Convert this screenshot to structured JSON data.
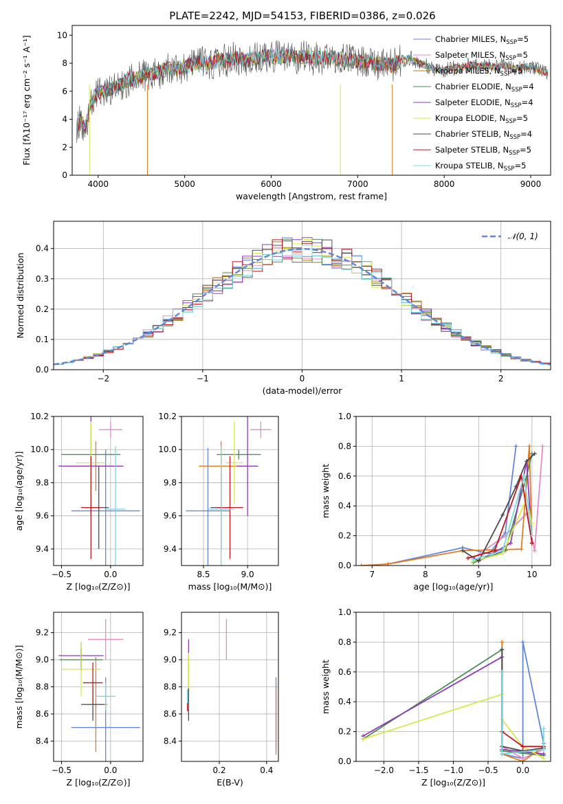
{
  "figure": {
    "title": "PLATE=2242, MJD=54153, FIBERID=0386, z=0.026"
  },
  "chart_data": [
    {
      "id": "spectrum",
      "type": "line",
      "title": "PLATE=2242, MJD=54153, FIBERID=0386, z=0.026",
      "xlabel": "wavelength [Angstrom, rest frame]",
      "ylabel": "Flux [fλ10⁻¹⁷ erg cm⁻² s⁻¹ A⁻¹]",
      "xlim": [
        3700,
        9230
      ],
      "ylim": [
        0,
        10.7
      ],
      "xticks": [
        4000,
        5000,
        6000,
        7000,
        8000,
        9000
      ],
      "yticks": [
        0,
        2,
        4,
        6,
        8,
        10
      ],
      "legend_position": "top-right",
      "data_x": [
        3750,
        3800,
        3850,
        3900,
        3950,
        4000,
        4100,
        4200,
        4300,
        4400,
        4500,
        4600,
        4700,
        4800,
        4900,
        5000,
        5100,
        5200,
        5300,
        5400,
        5500,
        5600,
        5700,
        5800,
        5900,
        6000,
        6100,
        6200,
        6300,
        6400,
        6500,
        6600,
        6700,
        6800,
        6900,
        7000,
        7100,
        7200,
        7300,
        7400,
        7500,
        7600,
        7700,
        7800,
        7900,
        8000,
        8100,
        8200,
        8300,
        8400,
        8500,
        8600,
        8700,
        8800,
        8900,
        9000,
        9100,
        9200
      ],
      "data_y": [
        3.5,
        4.0,
        3.2,
        4.8,
        5.6,
        5.9,
        6.1,
        6.3,
        6.6,
        6.9,
        7.0,
        7.3,
        7.3,
        7.6,
        7.6,
        7.8,
        7.9,
        8.1,
        8.0,
        8.2,
        8.2,
        8.4,
        8.2,
        8.4,
        8.5,
        8.5,
        8.4,
        8.6,
        8.4,
        8.5,
        8.3,
        8.4,
        8.4,
        8.3,
        8.2,
        8.1,
        8.2,
        8.0,
        7.9,
        7.8,
        8.2,
        8.4,
        8.0,
        7.8,
        7.6,
        7.5,
        7.7,
        7.6,
        7.9,
        7.8,
        7.8,
        7.7,
        7.9,
        7.6,
        7.7,
        7.8,
        7.5,
        7.3
      ],
      "series": [
        {
          "name": "Chabrier MILES, N",
          "sub": "SSP",
          "suffix": "=5",
          "color": "#5f87d6"
        },
        {
          "name": "Salpeter MILES, N",
          "sub": "SSP",
          "suffix": "=5",
          "color": "#e58ac6"
        },
        {
          "name": "Kroupa MILES, N",
          "sub": "SSP",
          "suffix": "=5",
          "color": "#a77f00"
        },
        {
          "name": "Chabrier ELODIE, N",
          "sub": "SSP",
          "suffix": "=4",
          "color": "#4e8a55"
        },
        {
          "name": "Salpeter ELODIE, N",
          "sub": "SSP",
          "suffix": "=4",
          "color": "#8e3bb8"
        },
        {
          "name": "Kroupa ELODIE, N",
          "sub": "SSP",
          "suffix": "=5",
          "color": "#d8e84a"
        },
        {
          "name": "Chabrier STELIB, N",
          "sub": "SSP",
          "suffix": "=4",
          "color": "#4a4a4a"
        },
        {
          "name": "Salpeter STELIB, N",
          "sub": "SSP",
          "suffix": "=5",
          "color": "#c0151b"
        },
        {
          "name": "Kroupa STELIB, N",
          "sub": "SSP",
          "suffix": "=5",
          "color": "#7ad8e0"
        }
      ]
    },
    {
      "id": "residuals",
      "type": "histogram",
      "xlabel": "(data-model)/error",
      "ylabel": "Normed distribution",
      "xlim": [
        -2.5,
        2.5
      ],
      "ylim": [
        0,
        0.49
      ],
      "xticks": [
        -2,
        -1,
        0,
        1,
        2
      ],
      "yticks": [
        0.0,
        0.1,
        0.2,
        0.3,
        0.4
      ],
      "grid": true,
      "legend_position": "top-right",
      "legend_label": "𝒩(0, 1)",
      "gaussian_color": "#5f87d6",
      "bin_width": 0.1
    },
    {
      "id": "age-vs-z",
      "type": "errorbar",
      "xlabel": "Z [log₁₀(Z/Z⊙)]",
      "ylabel": "age  [log₁₀(age/yr)]",
      "xlim": [
        -0.58,
        0.33
      ],
      "ylim": [
        9.3,
        10.2
      ],
      "xticks": [
        -0.5,
        0.0
      ],
      "yticks": [
        9.4,
        9.6,
        9.8,
        10.0,
        10.2
      ],
      "grid": true,
      "points": [
        {
          "x": -0.05,
          "y": 9.63,
          "xerr": 0.35,
          "yerr": 0.37,
          "color": "#5f87d6"
        },
        {
          "x": 0.0,
          "y": 10.12,
          "xerr": 0.12,
          "yerr": 0.05,
          "color": "#e58ac6"
        },
        {
          "x": -0.15,
          "y": 9.9,
          "xerr": 0.12,
          "yerr": 0.15,
          "color": "#e07b1f"
        },
        {
          "x": -0.2,
          "y": 9.97,
          "xerr": 0.3,
          "yerr": 0.02,
          "color": "#4e8a55"
        },
        {
          "x": -0.2,
          "y": 9.9,
          "xerr": 0.33,
          "yerr": 0.3,
          "color": "#8e3bb8"
        },
        {
          "x": -0.2,
          "y": 9.92,
          "xerr": 0.15,
          "yerr": 0.25,
          "color": "#d8e84a"
        },
        {
          "x": -0.12,
          "y": 9.65,
          "xerr": 0.1,
          "yerr": 0.25,
          "color": "#4a4a4a"
        },
        {
          "x": -0.2,
          "y": 9.65,
          "xerr": 0.1,
          "yerr": 0.31,
          "color": "#c0151b"
        },
        {
          "x": 0.05,
          "y": 9.64,
          "xerr": 0.1,
          "yerr": 0.38,
          "color": "#7ad8e0"
        }
      ]
    },
    {
      "id": "age-vs-mass",
      "type": "errorbar",
      "xlabel": "mass [log₁₀(M/M⊙)]",
      "xlim": [
        8.25,
        9.35
      ],
      "ylim": [
        9.3,
        10.2
      ],
      "xticks": [
        8.5,
        9.0
      ],
      "yticks": [
        9.4,
        9.6,
        9.8,
        10.0,
        10.2
      ],
      "grid": true,
      "points": [
        {
          "x": 8.55,
          "y": 9.63,
          "xerr": 0.25,
          "yerr": 0.38,
          "color": "#5f87d6"
        },
        {
          "x": 9.15,
          "y": 10.12,
          "xerr": 0.12,
          "yerr": 0.05,
          "color": "#e58ac6"
        },
        {
          "x": 8.7,
          "y": 9.9,
          "xerr": 0.25,
          "yerr": 0.15,
          "color": "#e07b1f"
        },
        {
          "x": 8.9,
          "y": 9.97,
          "xerr": 0.25,
          "yerr": 0.03,
          "color": "#4e8a55"
        },
        {
          "x": 9.0,
          "y": 9.9,
          "xerr": 0.12,
          "yerr": 0.3,
          "color": "#8e3bb8"
        },
        {
          "x": 8.85,
          "y": 9.92,
          "xerr": 0.1,
          "yerr": 0.25,
          "color": "#d8e84a"
        },
        {
          "x": 8.7,
          "y": 9.65,
          "xerr": 0.12,
          "yerr": 0.25,
          "color": "#4a4a4a"
        },
        {
          "x": 8.8,
          "y": 9.65,
          "xerr": 0.15,
          "yerr": 0.31,
          "color": "#c0151b"
        },
        {
          "x": 8.7,
          "y": 9.64,
          "xerr": 0.15,
          "yerr": 0.38,
          "color": "#7ad8e0"
        }
      ]
    },
    {
      "id": "weight-vs-age",
      "type": "line",
      "xlabel": "age  [log₁₀(age/yr)]",
      "ylabel": "mass weight",
      "xlim": [
        6.7,
        10.35
      ],
      "ylim": [
        0,
        1.0
      ],
      "xticks": [
        7,
        8,
        9,
        10
      ],
      "yticks": [
        0.0,
        0.2,
        0.4,
        0.6,
        0.8,
        1.0
      ],
      "grid": true,
      "series": [
        {
          "color": "#5f87d6",
          "x": [
            7.3,
            8.7,
            9.2,
            9.5,
            9.7
          ],
          "y": [
            0.01,
            0.12,
            0.08,
            0.22,
            0.8
          ]
        },
        {
          "color": "#e58ac6",
          "x": [
            8.9,
            9.5,
            9.9,
            10.05,
            10.2
          ],
          "y": [
            0.05,
            0.2,
            0.35,
            0.1,
            0.8
          ]
        },
        {
          "color": "#e07b1f",
          "x": [
            6.8,
            7.3,
            8.7,
            9.8,
            9.95,
            10.0
          ],
          "y": [
            0.0,
            0.01,
            0.1,
            0.11,
            0.8,
            0.15
          ]
        },
        {
          "color": "#4e8a55",
          "x": [
            8.9,
            9.5,
            9.9,
            10.0
          ],
          "y": [
            0.02,
            0.1,
            0.6,
            0.75
          ]
        },
        {
          "color": "#8e3bb8",
          "x": [
            9.0,
            9.6,
            9.9,
            10.0
          ],
          "y": [
            0.03,
            0.15,
            0.7,
            0.15
          ]
        },
        {
          "color": "#d8e84a",
          "x": [
            8.9,
            9.45,
            9.9,
            10.0
          ],
          "y": [
            0.03,
            0.08,
            0.45,
            0.28
          ]
        },
        {
          "color": "#4a4a4a",
          "x": [
            8.7,
            9.0,
            9.45,
            9.7,
            9.9,
            10.05
          ],
          "y": [
            0.1,
            0.03,
            0.34,
            0.53,
            0.7,
            0.75
          ]
        },
        {
          "color": "#c0151b",
          "x": [
            8.8,
            9.3,
            9.8,
            10.0
          ],
          "y": [
            0.05,
            0.1,
            0.6,
            0.15
          ]
        },
        {
          "color": "#7ad8e0",
          "x": [
            8.9,
            9.45,
            9.85,
            10.0
          ],
          "y": [
            0.04,
            0.1,
            0.6,
            0.2
          ]
        }
      ]
    },
    {
      "id": "mass-vs-z",
      "type": "errorbar",
      "xlabel": "Z [log₁₀(Z/Z⊙)]",
      "ylabel": "mass [log₁₀(M/M⊙)]",
      "xlim": [
        -0.58,
        0.33
      ],
      "ylim": [
        8.25,
        9.35
      ],
      "xticks": [
        -0.5,
        0.0
      ],
      "yticks": [
        8.4,
        8.6,
        8.8,
        9.0,
        9.2
      ],
      "grid": true,
      "points": [
        {
          "x": -0.05,
          "y": 8.5,
          "xerr": 0.35,
          "yerr": 0.37,
          "color": "#5f87d6"
        },
        {
          "x": -0.05,
          "y": 9.15,
          "xerr": 0.18,
          "yerr": 0.15,
          "color": "#e58ac6"
        },
        {
          "x": -0.15,
          "y": 8.67,
          "xerr": 0.12,
          "yerr": 0.35,
          "color": "#e07b1f"
        },
        {
          "x": -0.3,
          "y": 9.0,
          "xerr": 0.22,
          "yerr": 0.08,
          "color": "#4e8a55"
        },
        {
          "x": -0.3,
          "y": 9.03,
          "xerr": 0.23,
          "yerr": 0.1,
          "color": "#8e3bb8"
        },
        {
          "x": -0.3,
          "y": 8.93,
          "xerr": 0.2,
          "yerr": 0.2,
          "color": "#d8e84a"
        },
        {
          "x": -0.18,
          "y": 8.67,
          "xerr": 0.12,
          "yerr": 0.12,
          "color": "#4a4a4a"
        },
        {
          "x": -0.18,
          "y": 8.83,
          "xerr": 0.1,
          "yerr": 0.15,
          "color": "#c0151b"
        },
        {
          "x": -0.05,
          "y": 8.73,
          "xerr": 0.1,
          "yerr": 0.1,
          "color": "#7ad8e0"
        }
      ]
    },
    {
      "id": "mass-vs-ebv",
      "type": "errorbar",
      "xlabel": "E(B-V)",
      "xlim": [
        0.04,
        0.45
      ],
      "ylim": [
        8.25,
        9.35
      ],
      "xticks": [
        0.2,
        0.4
      ],
      "yticks": [
        8.4,
        8.6,
        8.8,
        9.0,
        9.2
      ],
      "grid": true,
      "points": [
        {
          "x": 0.44,
          "y": 8.6,
          "xerr": 0.0,
          "yerr": 0.27,
          "color": "#5f87d6"
        },
        {
          "x": 0.23,
          "y": 9.15,
          "xerr": 0.0,
          "yerr": 0.15,
          "color": "#e58ac6"
        },
        {
          "x": 0.44,
          "y": 8.55,
          "xerr": 0.0,
          "yerr": 0.25,
          "color": "#e07b1f"
        },
        {
          "x": 0.07,
          "y": 8.9,
          "xerr": 0.0,
          "yerr": 0.15,
          "color": "#4e8a55"
        },
        {
          "x": 0.07,
          "y": 9.05,
          "xerr": 0.0,
          "yerr": 0.1,
          "color": "#8e3bb8"
        },
        {
          "x": 0.07,
          "y": 8.85,
          "xerr": 0.0,
          "yerr": 0.2,
          "color": "#d8e84a"
        },
        {
          "x": 0.07,
          "y": 8.67,
          "xerr": 0.0,
          "yerr": 0.12,
          "color": "#4a4a4a"
        },
        {
          "x": 0.065,
          "y": 8.7,
          "xerr": 0.0,
          "yerr": 0.08,
          "color": "#c0151b"
        },
        {
          "x": 0.065,
          "y": 8.73,
          "xerr": 0.0,
          "yerr": 0.05,
          "color": "#7ad8e0"
        }
      ]
    },
    {
      "id": "weight-vs-z",
      "type": "line",
      "xlabel": "Z [log₁₀(Z/Z⊙)]",
      "ylabel": "mass weight",
      "xlim": [
        -2.4,
        0.4
      ],
      "ylim": [
        0,
        1.0
      ],
      "xticks": [
        -2.0,
        -1.5,
        -1.0,
        -0.5,
        0.0
      ],
      "yticks": [
        0.0,
        0.2,
        0.4,
        0.6,
        0.8,
        1.0
      ],
      "grid": true,
      "series": [
        {
          "color": "#5f87d6",
          "x": [
            -0.3,
            0.0,
            0.0,
            0.3
          ],
          "y": [
            0.05,
            0.02,
            0.8,
            0.12
          ]
        },
        {
          "color": "#e58ac6",
          "x": [
            -0.3,
            0.0,
            0.3
          ],
          "y": [
            0.1,
            0.02,
            0.08
          ]
        },
        {
          "color": "#e07b1f",
          "x": [
            -0.3,
            -0.3,
            0.0,
            0.3
          ],
          "y": [
            0.8,
            0.05,
            0.0,
            0.1
          ]
        },
        {
          "color": "#4e8a55",
          "x": [
            -2.3,
            -0.3,
            -0.3,
            0.3
          ],
          "y": [
            0.15,
            0.75,
            0.07,
            0.04
          ]
        },
        {
          "color": "#8e3bb8",
          "x": [
            -2.3,
            -0.3,
            -0.3,
            0.3
          ],
          "y": [
            0.17,
            0.7,
            0.08,
            0.05
          ]
        },
        {
          "color": "#d8e84a",
          "x": [
            -2.3,
            -0.3,
            -0.3,
            0.0,
            0.3
          ],
          "y": [
            0.15,
            0.45,
            0.28,
            0.1,
            0.02
          ]
        },
        {
          "color": "#4a4a4a",
          "x": [
            -0.3,
            -0.3,
            0.0,
            0.3
          ],
          "y": [
            0.75,
            0.1,
            0.07,
            0.09
          ]
        },
        {
          "color": "#c0151b",
          "x": [
            -0.3,
            -0.3,
            0.0,
            0.3
          ],
          "y": [
            0.6,
            0.2,
            0.1,
            0.1
          ]
        },
        {
          "color": "#7ad8e0",
          "x": [
            -0.3,
            -0.3,
            0.3,
            0.3
          ],
          "y": [
            0.6,
            0.05,
            0.08,
            0.22
          ]
        }
      ]
    }
  ]
}
